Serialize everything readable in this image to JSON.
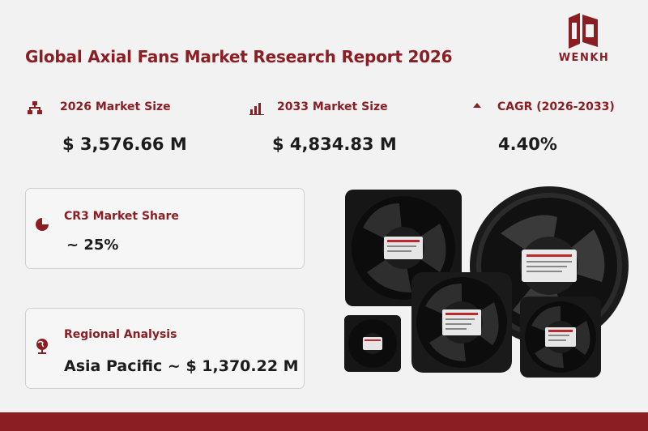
{
  "header": {
    "title": "Global Axial Fans Market Research Report 2026",
    "brand": "WENKH"
  },
  "metrics": [
    {
      "icon": "org-chart-icon",
      "label": "2026 Market Size",
      "value": "$ 3,576.66  M"
    },
    {
      "icon": "bar-chart-icon",
      "label": "2033 Market Size",
      "value": "$ 4,834.83  M"
    },
    {
      "icon": "triangle-up-icon",
      "label": "CAGR (2026-2033)",
      "value": "4.40%"
    }
  ],
  "cards": {
    "cr3": {
      "icon": "pie-chart-icon",
      "label": "CR3 Market Share",
      "value": "~ 25%"
    },
    "regional": {
      "icon": "globe-icon",
      "label": "Regional Analysis",
      "value": "Asia Pacific ~ $ 1,370.22 M"
    }
  },
  "colors": {
    "accent": "#8b1e22",
    "background": "#f3f2f2",
    "text": "#1c1c1c"
  }
}
